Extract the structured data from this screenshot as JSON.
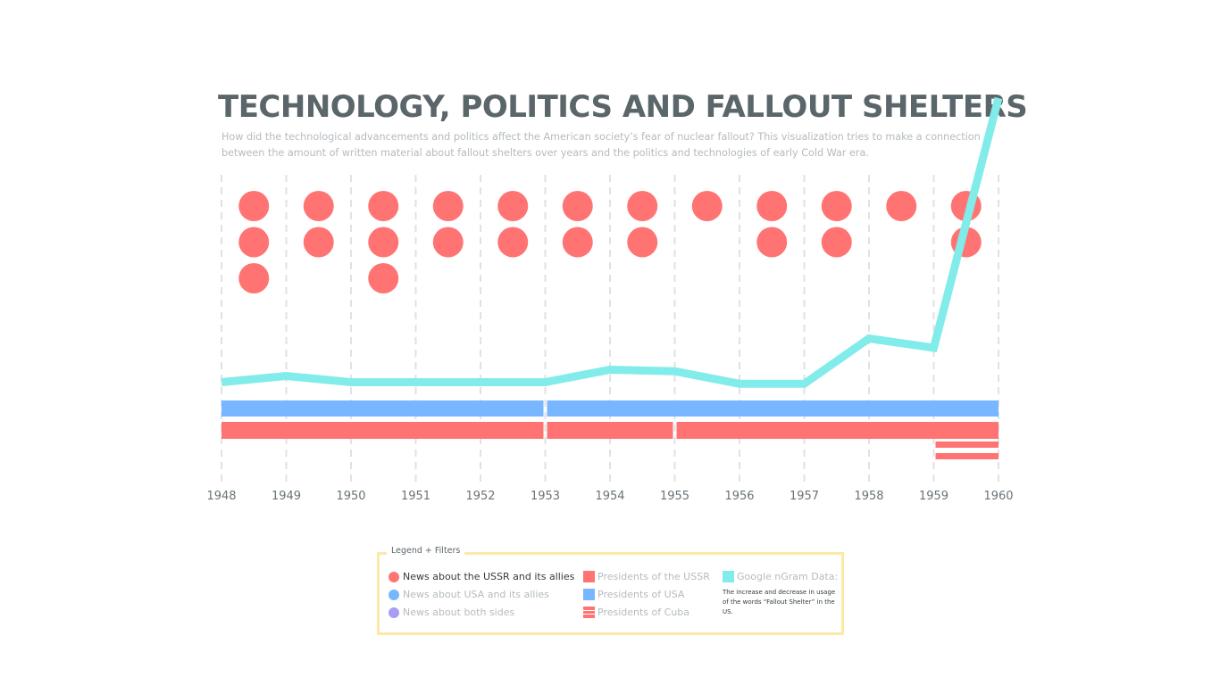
{
  "header": {
    "title": "TECHNOLOGY, POLITICS AND FALLOUT SHELTERS",
    "subtitle": "How did the technological advancements and politics affect the American society’s fear of nuclear fallout? This visualization tries to make a connection between the amount of written material about fallout shelters over years and the politics and technologies of early Cold War era."
  },
  "colors": {
    "ussr": "#ff7473",
    "usa": "#78b6ff",
    "both": "#a79df5",
    "ngram": "#81ece9",
    "legend_border": "#fbe9a6"
  },
  "chart_data": {
    "type": "line",
    "title": "TECHNOLOGY, POLITICS AND FALLOUT SHELTERS",
    "xlabel": "",
    "ylabel": "",
    "x_ticks": [
      "1948",
      "1949",
      "1950",
      "1951",
      "1952",
      "1953",
      "1954",
      "1955",
      "1956",
      "1957",
      "1958",
      "1959",
      "1960"
    ],
    "xlim": [
      1948,
      1960
    ],
    "grid": "vertical dashed lines at each year",
    "ngram_series": {
      "x": [
        1948,
        1949,
        1950,
        1951,
        1952,
        1953,
        1954,
        1955,
        1956,
        1957,
        1958,
        1959,
        1960
      ],
      "values": [
        0.09,
        0.11,
        0.09,
        0.09,
        0.09,
        0.09,
        0.13,
        0.125,
        0.085,
        0.085,
        0.23,
        0.2,
        1.0
      ],
      "unit": "relative frequency"
    },
    "news_ussr_dots_per_year": [
      {
        "year": 1948,
        "count": 3
      },
      {
        "year": 1949,
        "count": 2
      },
      {
        "year": 1950,
        "count": 3
      },
      {
        "year": 1951,
        "count": 2
      },
      {
        "year": 1952,
        "count": 2
      },
      {
        "year": 1953,
        "count": 2
      },
      {
        "year": 1954,
        "count": 2
      },
      {
        "year": 1955,
        "count": 1
      },
      {
        "year": 1956,
        "count": 2
      },
      {
        "year": 1957,
        "count": 2
      },
      {
        "year": 1958,
        "count": 1
      },
      {
        "year": 1959,
        "count": 2
      }
    ],
    "presidents_usa_terms": [
      [
        1948,
        1953
      ],
      [
        1953,
        1960
      ]
    ],
    "presidents_ussr_terms": [
      [
        1948,
        1953
      ],
      [
        1953,
        1955
      ],
      [
        1955,
        1960
      ]
    ],
    "presidents_cuba_terms": [
      [
        1959,
        1960
      ]
    ]
  },
  "legend": {
    "title": "Legend + Filters",
    "items": {
      "news_ussr": "News about the USSR and its allies",
      "news_usa": "News about USA and its allies",
      "news_both": "News about both sides",
      "presidents_ussr": "Presidents of the USSR",
      "presidents_usa": "Presidents of USA",
      "presidents_cuba": "Presidents of Cuba",
      "ngram": "Google nGram Data:"
    },
    "ngram_description": "The increase and decrease in usage of the words “Fallout Shelter” in the US."
  }
}
